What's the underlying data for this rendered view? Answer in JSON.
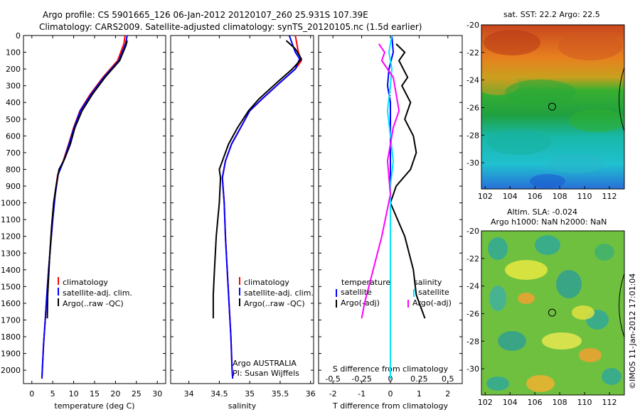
{
  "header": {
    "line1": "Argo profile: CS 5901665_126 06-Jan-2012 20120107_260 25.931S 107.39E",
    "line2": "Climatology: CARS2009. Satellite-adjusted climatology: synTS_20120105.nc (1.5d earlier)"
  },
  "colors": {
    "climatology": "#ff0000",
    "satellite": "#0000ff",
    "argo": "#000000",
    "salinity_diff": "#ff00ff",
    "salinity_sat": "#00e5ff"
  },
  "chart_data": [
    {
      "type": "line",
      "xlabel": "temperature (deg C)",
      "ylim": [
        2080,
        0
      ],
      "xlim": [
        -2,
        32
      ],
      "xticks": [
        0,
        5,
        10,
        15,
        20,
        25,
        30
      ],
      "yticks": [
        0,
        100,
        200,
        300,
        400,
        500,
        600,
        700,
        800,
        900,
        1000,
        1100,
        1200,
        1300,
        1400,
        1500,
        1600,
        1700,
        1800,
        1900,
        2000
      ],
      "legend": [
        "climatology",
        "satellite-adj. clim.",
        "Argo(..raw -QC)"
      ],
      "series": [
        {
          "name": "climatology",
          "points": [
            [
              22.3,
              0
            ],
            [
              22,
              50
            ],
            [
              20.5,
              150
            ],
            [
              17,
              250
            ],
            [
              14,
              350
            ],
            [
              11.5,
              450
            ],
            [
              10,
              550
            ],
            [
              8.8,
              650
            ],
            [
              7.5,
              750
            ],
            [
              6.2,
              830
            ],
            [
              5.5,
              950
            ],
            [
              5,
              1100
            ],
            [
              4.5,
              1250
            ],
            [
              4,
              1400
            ],
            [
              3.6,
              1550
            ],
            [
              3.2,
              1700
            ],
            [
              2.8,
              1850
            ],
            [
              2.5,
              2000
            ],
            [
              2.4,
              2050
            ]
          ]
        },
        {
          "name": "satellite-adj. clim.",
          "points": [
            [
              22.8,
              0
            ],
            [
              22.4,
              50
            ],
            [
              20.8,
              150
            ],
            [
              17.2,
              250
            ],
            [
              14.2,
              350
            ],
            [
              11.6,
              450
            ],
            [
              10.1,
              550
            ],
            [
              8.9,
              650
            ],
            [
              7.6,
              750
            ],
            [
              6.3,
              830
            ],
            [
              5.6,
              950
            ],
            [
              5,
              1100
            ],
            [
              4.5,
              1250
            ],
            [
              4,
              1400
            ],
            [
              3.6,
              1550
            ],
            [
              3.2,
              1700
            ],
            [
              2.8,
              1850
            ],
            [
              2.5,
              2000
            ],
            [
              2.4,
              2050
            ]
          ]
        },
        {
          "name": "Argo(..raw -QC)",
          "points": [
            [
              22.8,
              30
            ],
            [
              22.5,
              60
            ],
            [
              21,
              150
            ],
            [
              17.5,
              250
            ],
            [
              14.5,
              350
            ],
            [
              12,
              450
            ],
            [
              10.3,
              550
            ],
            [
              9.2,
              650
            ],
            [
              7.8,
              740
            ],
            [
              6.5,
              800
            ],
            [
              5.8,
              900
            ],
            [
              5.2,
              1000
            ],
            [
              4.7,
              1150
            ],
            [
              4.3,
              1300
            ],
            [
              4,
              1450
            ],
            [
              3.8,
              1550
            ],
            [
              3.7,
              1690
            ]
          ]
        }
      ]
    },
    {
      "type": "line",
      "xlabel": "salinity",
      "ylim": [
        2080,
        0
      ],
      "xlim": [
        33.7,
        36.05
      ],
      "xticks": [
        34,
        34.5,
        35,
        35.5,
        36
      ],
      "legend": [
        "climatology",
        "satellite-adj. clim.",
        "Argo(..raw -QC)"
      ],
      "annotation": [
        "Argo AUSTRALIA",
        "PI: Susan Wijffels"
      ],
      "series": [
        {
          "name": "climatology",
          "points": [
            [
              35.75,
              0
            ],
            [
              35.8,
              100
            ],
            [
              35.85,
              150
            ],
            [
              35.75,
              200
            ],
            [
              35.5,
              280
            ],
            [
              35.2,
              380
            ],
            [
              35,
              450
            ],
            [
              34.85,
              550
            ],
            [
              34.7,
              650
            ],
            [
              34.6,
              750
            ],
            [
              34.55,
              850
            ],
            [
              34.58,
              1000
            ],
            [
              34.6,
              1200
            ],
            [
              34.63,
              1400
            ],
            [
              34.66,
              1600
            ],
            [
              34.69,
              1800
            ],
            [
              34.71,
              2000
            ],
            [
              34.72,
              2050
            ]
          ]
        },
        {
          "name": "satellite-adj. clim.",
          "points": [
            [
              35.65,
              0
            ],
            [
              35.75,
              100
            ],
            [
              35.82,
              140
            ],
            [
              35.75,
              200
            ],
            [
              35.5,
              280
            ],
            [
              35.2,
              380
            ],
            [
              35,
              450
            ],
            [
              34.85,
              550
            ],
            [
              34.7,
              650
            ],
            [
              34.6,
              750
            ],
            [
              34.55,
              850
            ],
            [
              34.58,
              1000
            ],
            [
              34.6,
              1200
            ],
            [
              34.63,
              1400
            ],
            [
              34.66,
              1600
            ],
            [
              34.69,
              1800
            ],
            [
              34.71,
              2000
            ],
            [
              34.72,
              2050
            ]
          ]
        },
        {
          "name": "Argo(..raw -QC)",
          "points": [
            [
              35.6,
              30
            ],
            [
              35.75,
              80
            ],
            [
              35.85,
              140
            ],
            [
              35.7,
              200
            ],
            [
              35.45,
              280
            ],
            [
              35.15,
              380
            ],
            [
              34.98,
              450
            ],
            [
              34.8,
              550
            ],
            [
              34.65,
              650
            ],
            [
              34.55,
              750
            ],
            [
              34.5,
              800
            ],
            [
              34.52,
              850
            ],
            [
              34.5,
              1000
            ],
            [
              34.45,
              1200
            ],
            [
              34.42,
              1400
            ],
            [
              34.4,
              1550
            ],
            [
              34.4,
              1690
            ]
          ]
        }
      ]
    },
    {
      "type": "line",
      "xlabel": "T difference from climatology",
      "xlabel_top": "S difference from climatology",
      "ylim": [
        2080,
        0
      ],
      "xlim": [
        -2.5,
        2.5
      ],
      "xticks": [
        -2,
        -1,
        0,
        1,
        2
      ],
      "xticks_top": [
        -0.5,
        -0.25,
        0,
        0.25,
        0.5
      ],
      "legend": [
        "temperature",
        "satellite",
        "Argo(-adj)",
        "salinity",
        "satellite",
        "Argo(-adj)"
      ],
      "series": [
        {
          "name": "temperature satellite",
          "points": [
            [
              0.05,
              0
            ],
            [
              0.1,
              100
            ],
            [
              -0.05,
              200
            ],
            [
              -0.1,
              300
            ],
            [
              0,
              400
            ],
            [
              0,
              600
            ],
            [
              0,
              800
            ],
            [
              0,
              1000
            ],
            [
              0,
              1500
            ],
            [
              0,
              2050
            ]
          ]
        },
        {
          "name": "temperature Argo(-adj)",
          "points": [
            [
              0.2,
              50
            ],
            [
              0.5,
              100
            ],
            [
              0.3,
              150
            ],
            [
              0.6,
              250
            ],
            [
              0.4,
              300
            ],
            [
              0.7,
              400
            ],
            [
              0.5,
              500
            ],
            [
              0.8,
              600
            ],
            [
              0.9,
              700
            ],
            [
              0.7,
              800
            ],
            [
              0.2,
              900
            ],
            [
              0,
              1000
            ],
            [
              0.5,
              1200
            ],
            [
              0.8,
              1400
            ],
            [
              0.9,
              1550
            ],
            [
              1.2,
              1690
            ]
          ]
        },
        {
          "name": "salinity satellite",
          "points": [
            [
              0.05,
              0
            ],
            [
              -0.05,
              100
            ],
            [
              0.05,
              200
            ],
            [
              0,
              300
            ],
            [
              -0.1,
              450
            ],
            [
              0,
              600
            ],
            [
              0.1,
              750
            ],
            [
              0,
              900
            ],
            [
              0,
              1000
            ],
            [
              0,
              1200
            ],
            [
              0,
              1500
            ],
            [
              0,
              2050
            ]
          ]
        },
        {
          "name": "salinity Argo(-adj)",
          "points": [
            [
              -0.4,
              50
            ],
            [
              -0.2,
              100
            ],
            [
              -0.3,
              150
            ],
            [
              0.1,
              250
            ],
            [
              0.2,
              350
            ],
            [
              0.3,
              450
            ],
            [
              0.1,
              550
            ],
            [
              0,
              650
            ],
            [
              -0.1,
              750
            ],
            [
              -0.05,
              850
            ],
            [
              0,
              950
            ],
            [
              -0.3,
              1200
            ],
            [
              -0.6,
              1400
            ],
            [
              -0.9,
              1600
            ],
            [
              -1,
              1690
            ]
          ]
        }
      ]
    }
  ],
  "maps": {
    "sst": {
      "title": "sat. SST: 22.2 Argo: 22.5",
      "xticks": [
        102,
        104,
        106,
        108,
        110,
        112
      ],
      "yticks": [
        -20,
        -22,
        -24,
        -26,
        -28,
        -30
      ],
      "xlim": [
        101.7,
        113.2
      ],
      "ylim": [
        -31.9,
        -20
      ]
    },
    "sla": {
      "title1": "Altim. SLA: -0.024",
      "title2": "Argo h1000: NaN h2000: NaN",
      "xticks": [
        102,
        104,
        106,
        108,
        110,
        112
      ],
      "yticks": [
        -20,
        -22,
        -24,
        -26,
        -28,
        -30
      ],
      "xlim": [
        101.7,
        113.2
      ],
      "ylim": [
        -31.9,
        -20
      ]
    },
    "marker": {
      "lon": 107.39,
      "lat": -25.931
    }
  },
  "credit": "©IMOS 11-Jan-2012 17:01:04"
}
